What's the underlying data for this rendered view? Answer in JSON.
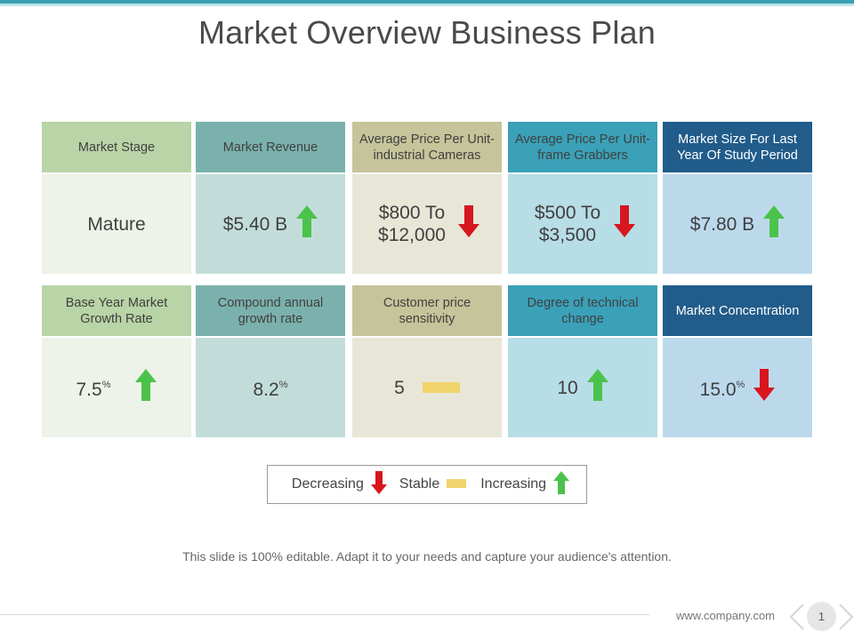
{
  "title": "Market Overview Business Plan",
  "colors": {
    "col1_head": "#b9d4a6",
    "col1_body": "#edf3e8",
    "col2_head": "#7bb1ac",
    "col2_body": "#c2ddd9",
    "col3_head": "#c6c49a",
    "col3_body": "#e8e6d6",
    "col4_head": "#3aa1b8",
    "col4_body": "#b7dde7",
    "col5_head": "#215c8a",
    "col5_body": "#bcd9ec",
    "increasing": "#4bc34b",
    "decreasing": "#d7161e",
    "stable": "#f0d36b"
  },
  "row1": [
    {
      "header": "Market Stage",
      "value": "Mature",
      "suffix": "",
      "trend": "none"
    },
    {
      "header": "Market Revenue",
      "value": "$5.40 B",
      "suffix": "",
      "trend": "up"
    },
    {
      "header": "Average Price Per Unit-industrial Cameras",
      "value": "$800 To $12,000",
      "suffix": "",
      "trend": "down"
    },
    {
      "header": "Average Price Per Unit-frame Grabbers",
      "value": "$500 To $3,500",
      "suffix": "",
      "trend": "down"
    },
    {
      "header": "Market Size For Last Year Of Study Period",
      "value": "$7.80 B",
      "suffix": "",
      "trend": "up"
    }
  ],
  "row2": [
    {
      "header": "Base Year Market Growth Rate",
      "value": "7.5",
      "suffix": "%",
      "trend": "up"
    },
    {
      "header": "Compound annual growth rate",
      "value": "8.2",
      "suffix": "%",
      "trend": "none"
    },
    {
      "header": "Customer price sensitivity",
      "value": "5",
      "suffix": "",
      "trend": "stable"
    },
    {
      "header": "Degree of technical change",
      "value": "10",
      "suffix": "",
      "trend": "up"
    },
    {
      "header": "Market Concentration",
      "value": "15.0",
      "suffix": "%",
      "trend": "down"
    }
  ],
  "legend": {
    "decreasing": "Decreasing",
    "stable": "Stable",
    "increasing": "Increasing"
  },
  "footer_note": "This slide is 100% editable. Adapt it to your needs and capture your audience's attention.",
  "footer_url": "www.company.com",
  "page_number": "1"
}
